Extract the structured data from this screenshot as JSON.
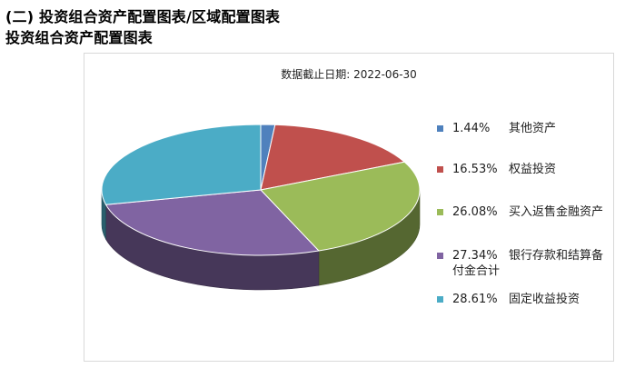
{
  "page": {
    "heading_main": "(二) 投资组合资产配置图表/区域配置图表",
    "heading_sub": "投资组合资产配置图表"
  },
  "chart_data": {
    "type": "pie",
    "subtitle_label": "数据截止日期:",
    "subtitle_date": "2022-06-30",
    "legend_position": "right",
    "series": [
      {
        "name": "其他资产",
        "value": 1.44,
        "label": "1.44%",
        "color": "#4f81bd"
      },
      {
        "name": "权益投资",
        "value": 16.53,
        "label": "16.53%",
        "color": "#c0504d"
      },
      {
        "name": "买入返售金融资产",
        "value": 26.08,
        "label": "26.08%",
        "color": "#9bbb59"
      },
      {
        "name": "银行存款和结算备付金合计",
        "value": 27.34,
        "label": "27.34%",
        "color": "#8064a2"
      },
      {
        "name": "固定收益投资",
        "value": 28.61,
        "label": "28.61%",
        "color": "#4bacc6"
      }
    ]
  }
}
